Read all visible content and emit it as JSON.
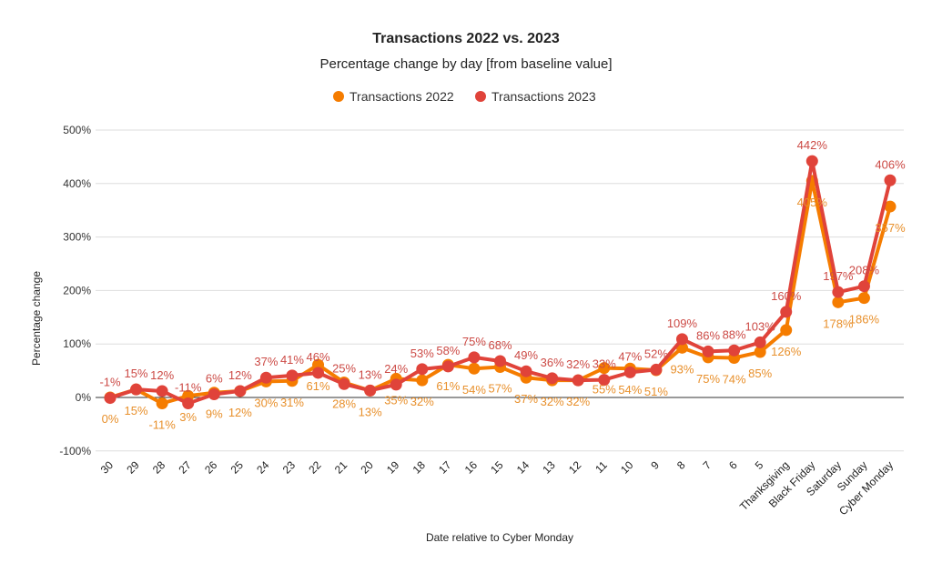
{
  "chart_data": {
    "type": "line",
    "title": "Transactions 2022 vs. 2023",
    "subtitle": "Percentage change by day [from baseline value]",
    "xlabel": "Date relative to Cyber Monday",
    "ylabel": "Percentage change",
    "ylim": [
      -100,
      500
    ],
    "yticks": [
      -100,
      0,
      100,
      200,
      300,
      400,
      500
    ],
    "ytick_labels": [
      "-100%",
      "0%",
      "100%",
      "200%",
      "300%",
      "400%",
      "500%"
    ],
    "grid": true,
    "legend_position": "top",
    "categories": [
      "30",
      "29",
      "28",
      "27",
      "26",
      "25",
      "24",
      "23",
      "22",
      "21",
      "20",
      "19",
      "18",
      "17",
      "16",
      "15",
      "14",
      "13",
      "12",
      "11",
      "10",
      "9",
      "8",
      "7",
      "6",
      "5",
      "Thanksgiving",
      "Black Friday",
      "Saturday",
      "Sunday",
      "Cyber Monday"
    ],
    "series": [
      {
        "name": "Transactions 2022",
        "color": "#f57c00",
        "label_color": "#e8902c",
        "values": [
          0,
          15,
          -11,
          3,
          9,
          12,
          30,
          31,
          61,
          28,
          13,
          35,
          32,
          61,
          54,
          57,
          37,
          32,
          32,
          55,
          54,
          51,
          93,
          75,
          74,
          85,
          126,
          405,
          178,
          186,
          357
        ]
      },
      {
        "name": "Transactions 2023",
        "color": "#e0433a",
        "label_color": "#cc4a45",
        "values": [
          -1,
          15,
          12,
          -11,
          6,
          12,
          37,
          41,
          46,
          25,
          13,
          24,
          53,
          58,
          75,
          68,
          49,
          36,
          32,
          33,
          47,
          52,
          109,
          86,
          88,
          103,
          160,
          442,
          197,
          208,
          406
        ]
      }
    ]
  }
}
